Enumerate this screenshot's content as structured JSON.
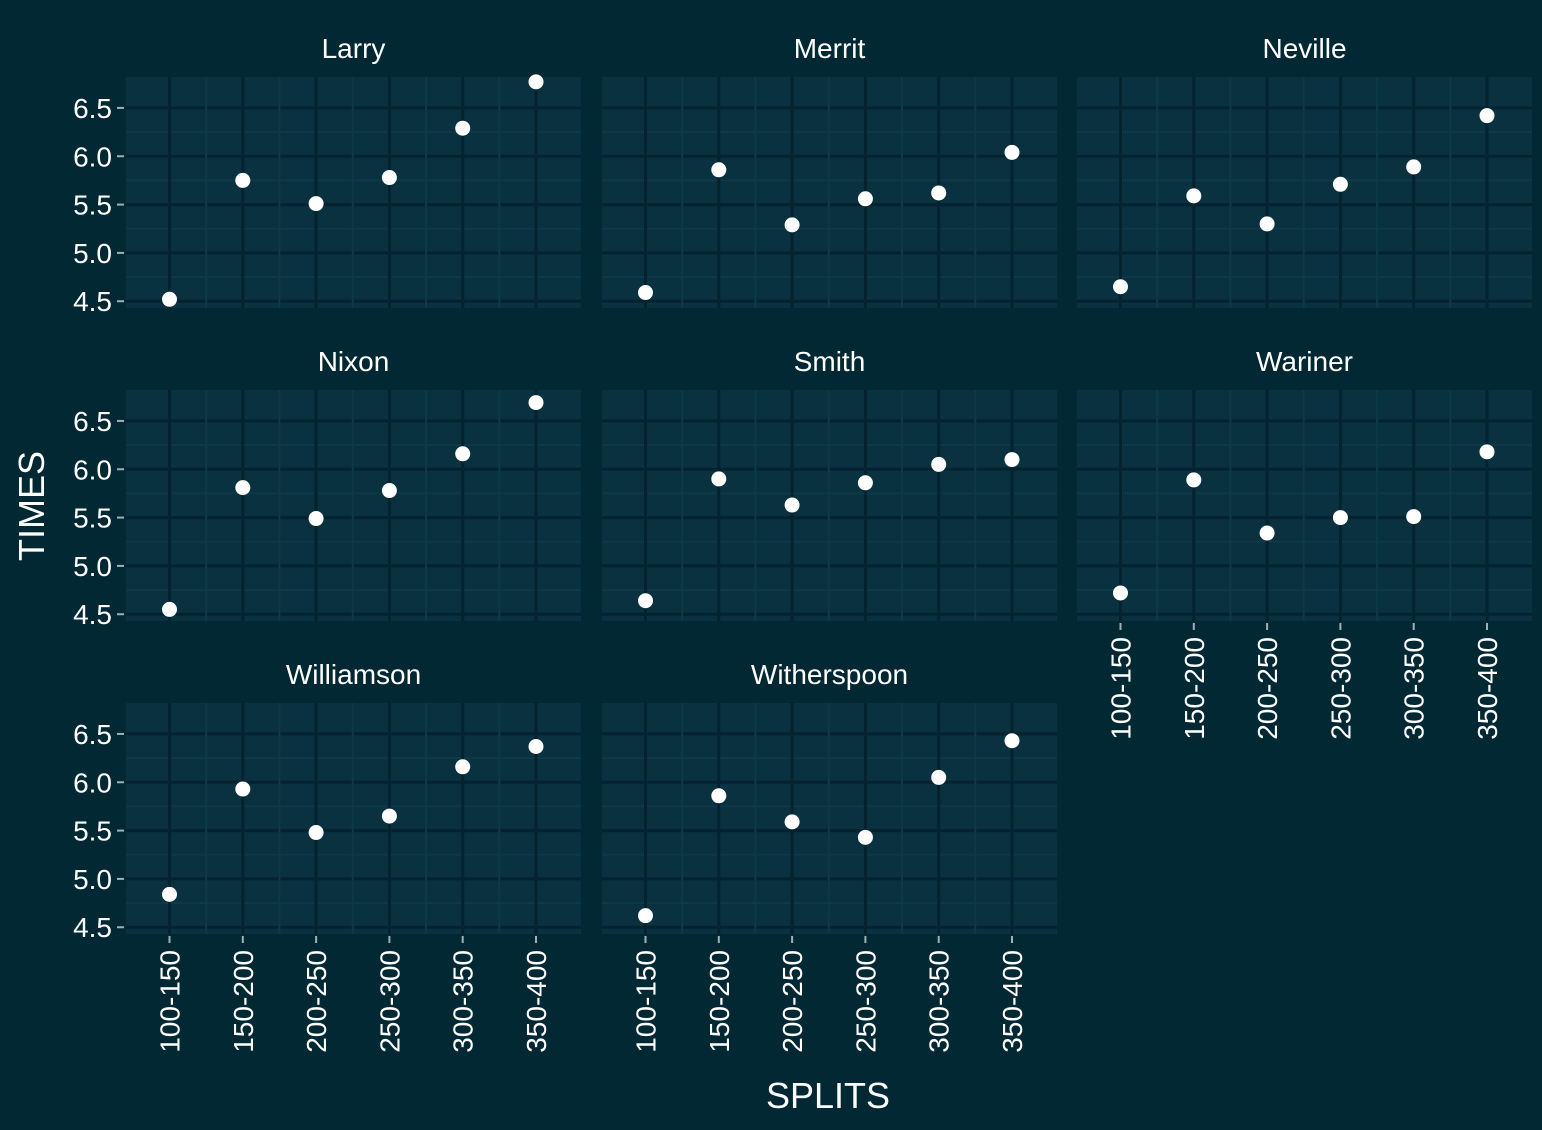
{
  "chart_data": {
    "type": "scatter",
    "facet": "wrap",
    "xlabel": "SPLITS",
    "ylabel": "TIMES",
    "categories": [
      "100-150",
      "150-200",
      "200-250",
      "250-300",
      "300-350",
      "350-400"
    ],
    "y_ticks": [
      4.5,
      5.0,
      5.5,
      6.0,
      6.5
    ],
    "y_tick_labels": [
      "4.5",
      "5.0",
      "5.5",
      "6.0",
      "6.5"
    ],
    "ylim": [
      4.43,
      6.82
    ],
    "grid": true,
    "panels": [
      {
        "name": "Larry",
        "values": [
          4.52,
          5.75,
          5.51,
          5.78,
          6.29,
          6.77
        ]
      },
      {
        "name": "Merrit",
        "values": [
          4.59,
          5.86,
          5.29,
          5.56,
          5.62,
          6.04
        ]
      },
      {
        "name": "Neville",
        "values": [
          4.65,
          5.59,
          5.3,
          5.71,
          5.89,
          6.42
        ]
      },
      {
        "name": "Nixon",
        "values": [
          4.55,
          5.81,
          5.49,
          5.78,
          6.16,
          6.69
        ]
      },
      {
        "name": "Smith",
        "values": [
          4.64,
          5.9,
          5.63,
          5.86,
          6.05,
          6.1
        ]
      },
      {
        "name": "Wariner",
        "values": [
          4.72,
          5.89,
          5.34,
          5.5,
          5.51,
          6.18
        ]
      },
      {
        "name": "Williamson",
        "values": [
          4.84,
          5.93,
          5.48,
          5.65,
          6.16,
          6.37
        ]
      },
      {
        "name": "Witherspoon",
        "values": [
          4.62,
          5.86,
          5.59,
          5.43,
          6.05,
          6.43
        ]
      }
    ]
  },
  "colors": {
    "background": "#022834",
    "panel": "#093140",
    "grid_major": "#04232E",
    "grid_minor": "#0E3947",
    "point": "#ffffff",
    "text": "#ffffff",
    "tick": "#9fb0b6"
  }
}
